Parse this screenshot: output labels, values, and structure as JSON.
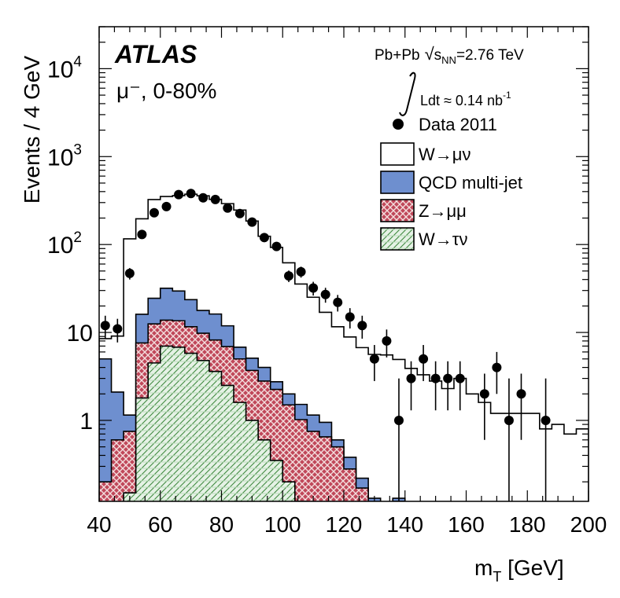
{
  "chart_data": {
    "type": "histogram-stacked-log",
    "experiment": "ATLAS",
    "selection": "μ⁻, 0-80%",
    "collision": "Pb+Pb",
    "energy_label": "=2.76 TeV",
    "sqrt_symbol": "√",
    "sqrt_sub_s": "s",
    "sqrt_sub_nn": "NN",
    "luminosity_label": "Ldt ≈ 0.14 nb",
    "luminosity_exp": "-1",
    "xlabel_main": "m",
    "xlabel_sub": "T",
    "xlabel_unit": " [GeV]",
    "ylabel": "Events / 4 GeV",
    "xlim": [
      40,
      200
    ],
    "ylim": [
      0.12,
      30000
    ],
    "x_ticks": [
      "40",
      "60",
      "80",
      "100",
      "120",
      "140",
      "160",
      "180",
      "200"
    ],
    "y_ticks": [
      {
        "value": 1,
        "base": "1",
        "exp": ""
      },
      {
        "value": 10,
        "base": "10",
        "exp": ""
      },
      {
        "value": 100,
        "base": "10",
        "exp": "2"
      },
      {
        "value": 1000,
        "base": "10",
        "exp": "3"
      },
      {
        "value": 10000,
        "base": "10",
        "exp": "4"
      }
    ],
    "bin_edges_start": 40,
    "bin_width": 4,
    "stack": [
      {
        "name": "W→τν",
        "color": "#d8ecd8",
        "pattern": "green-hatch",
        "values": [
          0.1,
          0.1,
          0.15,
          1.8,
          4.5,
          7.0,
          6.8,
          5.8,
          4.8,
          3.6,
          2.5,
          1.6,
          1.0,
          0.6,
          0.35,
          0.2,
          0.12,
          0.1,
          0.1,
          0.1
        ]
      },
      {
        "name": "Z→μμ",
        "color": "#c0485a",
        "pattern": "red-cross",
        "values": [
          0.1,
          0.5,
          0.6,
          5.8,
          8.0,
          6.8,
          6.8,
          5.8,
          5.0,
          4.6,
          4.4,
          3.4,
          2.7,
          2.2,
          1.9,
          1.3,
          0.9,
          0.65,
          0.55,
          0.4,
          0.28,
          0.17,
          0.1,
          0.02,
          0.12,
          0.1
        ]
      },
      {
        "name": "QCD multi-jet",
        "color": "#6e8fcf",
        "pattern": "solid",
        "values": [
          4.8,
          1.5,
          0.4,
          8.5,
          12.0,
          18.0,
          16.0,
          12.0,
          8.0,
          8.0,
          5.0,
          1.8,
          1.4,
          1.2,
          0.5,
          0.5,
          0.5,
          0.4,
          0.3,
          0.1,
          0.1,
          0.05,
          0.03,
          0.03,
          0.01
        ]
      },
      {
        "name": "W→μν",
        "color": "#ffffff",
        "pattern": "outline",
        "values": [
          3.5,
          7.0,
          115,
          180,
          300,
          320,
          330,
          350,
          340,
          310,
          280,
          240,
          180,
          120,
          90,
          60,
          34,
          24,
          16,
          11,
          8.5,
          6.5,
          5.5,
          5.5,
          4.8,
          3.8,
          3.3,
          2.8,
          2.3,
          3.0,
          2.0,
          1.6,
          1.2,
          1.2,
          1.2,
          1.2,
          0.8,
          0.9,
          0.7,
          0.8
        ]
      }
    ],
    "data_points": {
      "name": "Data 2011",
      "x": [
        42,
        46,
        50,
        54,
        58,
        62,
        66,
        70,
        74,
        78,
        82,
        86,
        90,
        94,
        98,
        102,
        106,
        110,
        114,
        118,
        122,
        126,
        130,
        134,
        138,
        142,
        146,
        150,
        154,
        158,
        166,
        170,
        174,
        178,
        186
      ],
      "y": [
        12,
        11,
        47,
        130,
        230,
        270,
        370,
        380,
        340,
        325,
        260,
        225,
        180,
        120,
        95,
        44,
        49,
        32,
        27,
        22,
        15,
        12,
        5,
        8,
        1,
        3,
        5,
        3,
        3,
        3,
        2,
        4,
        1,
        2,
        1
      ],
      "err_lo": [
        3.5,
        3.3,
        7,
        11,
        15,
        16,
        19,
        19,
        18,
        18,
        16,
        15,
        13,
        11,
        10,
        6.6,
        7,
        5.7,
        5.2,
        4.7,
        3.9,
        3.5,
        2.2,
        2.8,
        0.95,
        1.7,
        2.2,
        1.7,
        1.7,
        1.7,
        1.4,
        2.0,
        0.95,
        1.4,
        0.95
      ],
      "err_hi": [
        3.5,
        3.3,
        7,
        11,
        15,
        16,
        19,
        19,
        18,
        18,
        16,
        15,
        13,
        11,
        10,
        6.6,
        7,
        5.7,
        5.2,
        4.7,
        3.9,
        3.5,
        2.2,
        2.8,
        2.0,
        1.7,
        2.2,
        1.7,
        1.7,
        1.7,
        1.4,
        2.0,
        2.0,
        1.4,
        2.0
      ]
    },
    "legend": [
      {
        "label": "Data 2011",
        "kind": "marker"
      },
      {
        "label": "W→μν",
        "kind": "outline"
      },
      {
        "label": "QCD multi-jet",
        "kind": "solid"
      },
      {
        "label": "Z→μμ",
        "kind": "red-cross"
      },
      {
        "label": "W→τν",
        "kind": "green-hatch"
      }
    ],
    "legend_position": "top-right"
  }
}
